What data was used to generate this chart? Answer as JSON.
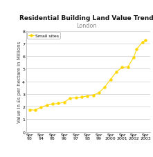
{
  "title": "Residential Building Land Value Trends",
  "subtitle": "London",
  "xlabel_labels": [
    "Spr\n93",
    "Spr\n94",
    "Spr\n95",
    "Spr\n96",
    "Spr\n97",
    "Spr\n98",
    "Spr\n99",
    "Spr\n2000",
    "Spr\n2001",
    "Spr\n2002",
    "Spr\n2003"
  ],
  "x_positions": [
    0,
    1,
    2,
    3,
    4,
    5,
    6,
    7,
    8,
    9,
    10
  ],
  "values": [
    1.75,
    1.72,
    1.95,
    2.1,
    2.2,
    2.25,
    2.35,
    2.65,
    2.7,
    2.75,
    2.85,
    2.9,
    3.1,
    3.55,
    4.15,
    4.75,
    5.1,
    5.15,
    5.9,
    6.55,
    7.1,
    7.25
  ],
  "x_vals": [
    0,
    0.5,
    1,
    1.5,
    2,
    2.5,
    3,
    3.5,
    4,
    4.5,
    5,
    5.5,
    6,
    6.5,
    7,
    7.5,
    8,
    8.5,
    9,
    9.25,
    9.75,
    10
  ],
  "line_color": "#FFD700",
  "marker_color": "#FFD700",
  "marker": "o",
  "legend_label": "Small sites",
  "ylabel": "Value in £s per hectare in Millions",
  "ylim": [
    0,
    8
  ],
  "yticks": [
    0,
    1,
    2,
    3,
    4,
    5,
    6,
    7,
    8
  ],
  "background_color": "#ffffff",
  "plot_bg_color": "#ffffff",
  "grid_color": "#cccccc",
  "title_fontsize": 6.5,
  "subtitle_fontsize": 5.8,
  "axis_fontsize": 5.0,
  "tick_fontsize": 4.5
}
